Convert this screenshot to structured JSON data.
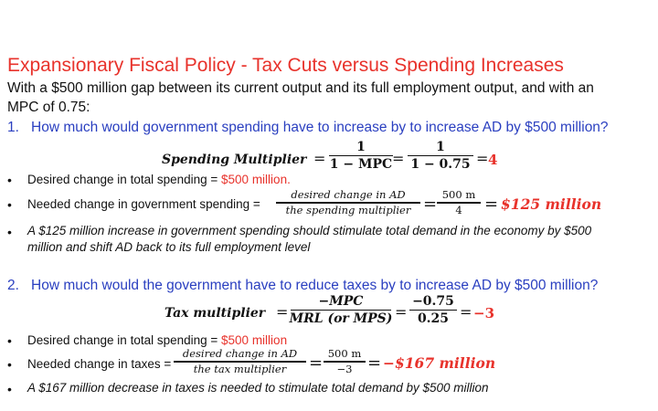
{
  "title": "Expansionary Fiscal Policy - Tax Cuts versus Spending Increases",
  "intro_line1": "With a $500 million gap between its current output and its full employment output, and with an",
  "intro_line2": "MPC of 0.75:",
  "q1": {
    "num": "1.",
    "text": "How much would government spending have to increase by to increase AD by $500 million?",
    "multiplier_label": "Spending Multiplier",
    "eq": "=",
    "frac1_num": "1",
    "frac1_den": "1 − MPC",
    "frac2_num": "1",
    "frac2_den": "1 − 0.75",
    "result": "4",
    "bullet1_text": "Desired change in total spending = ",
    "bullet1_red": "$500 million.",
    "bullet2_text": "Needed change in government spending =",
    "bullet2_num": "desired change in AD",
    "bullet2_den": "the spending multiplier",
    "bullet2_num2": "500 m",
    "bullet2_den2": "4",
    "bullet2_result": "$125 million",
    "bullet3_line1": "A $125 million increase in government spending should stimulate total demand in the economy by $500",
    "bullet3_line2": "million and shift AD back to its full employment level"
  },
  "q2": {
    "num": "2.",
    "text": "How much would the government have to reduce taxes by to increase AD by $500 million?",
    "multiplier_label": "Tax multiplier",
    "eq": "=",
    "frac1_num": "−MPC",
    "frac1_den": "MRL (or MPS)",
    "frac2_num": "−0.75",
    "frac2_den": "0.25",
    "result": "−3",
    "bullet1_text": "Desired change in total spending = ",
    "bullet1_red": "$500 million",
    "bullet2_text": "Needed change in taxes =",
    "bullet2_num": "desired change in AD",
    "bullet2_den": "the tax multiplier",
    "bullet2_num2": "500 m",
    "bullet2_den2": "−3",
    "bullet2_result": "−$167 million",
    "bullet3_line1": "A $167 million decrease in taxes is needed to stimulate total demand by $500 million"
  },
  "bullet_char": "•"
}
